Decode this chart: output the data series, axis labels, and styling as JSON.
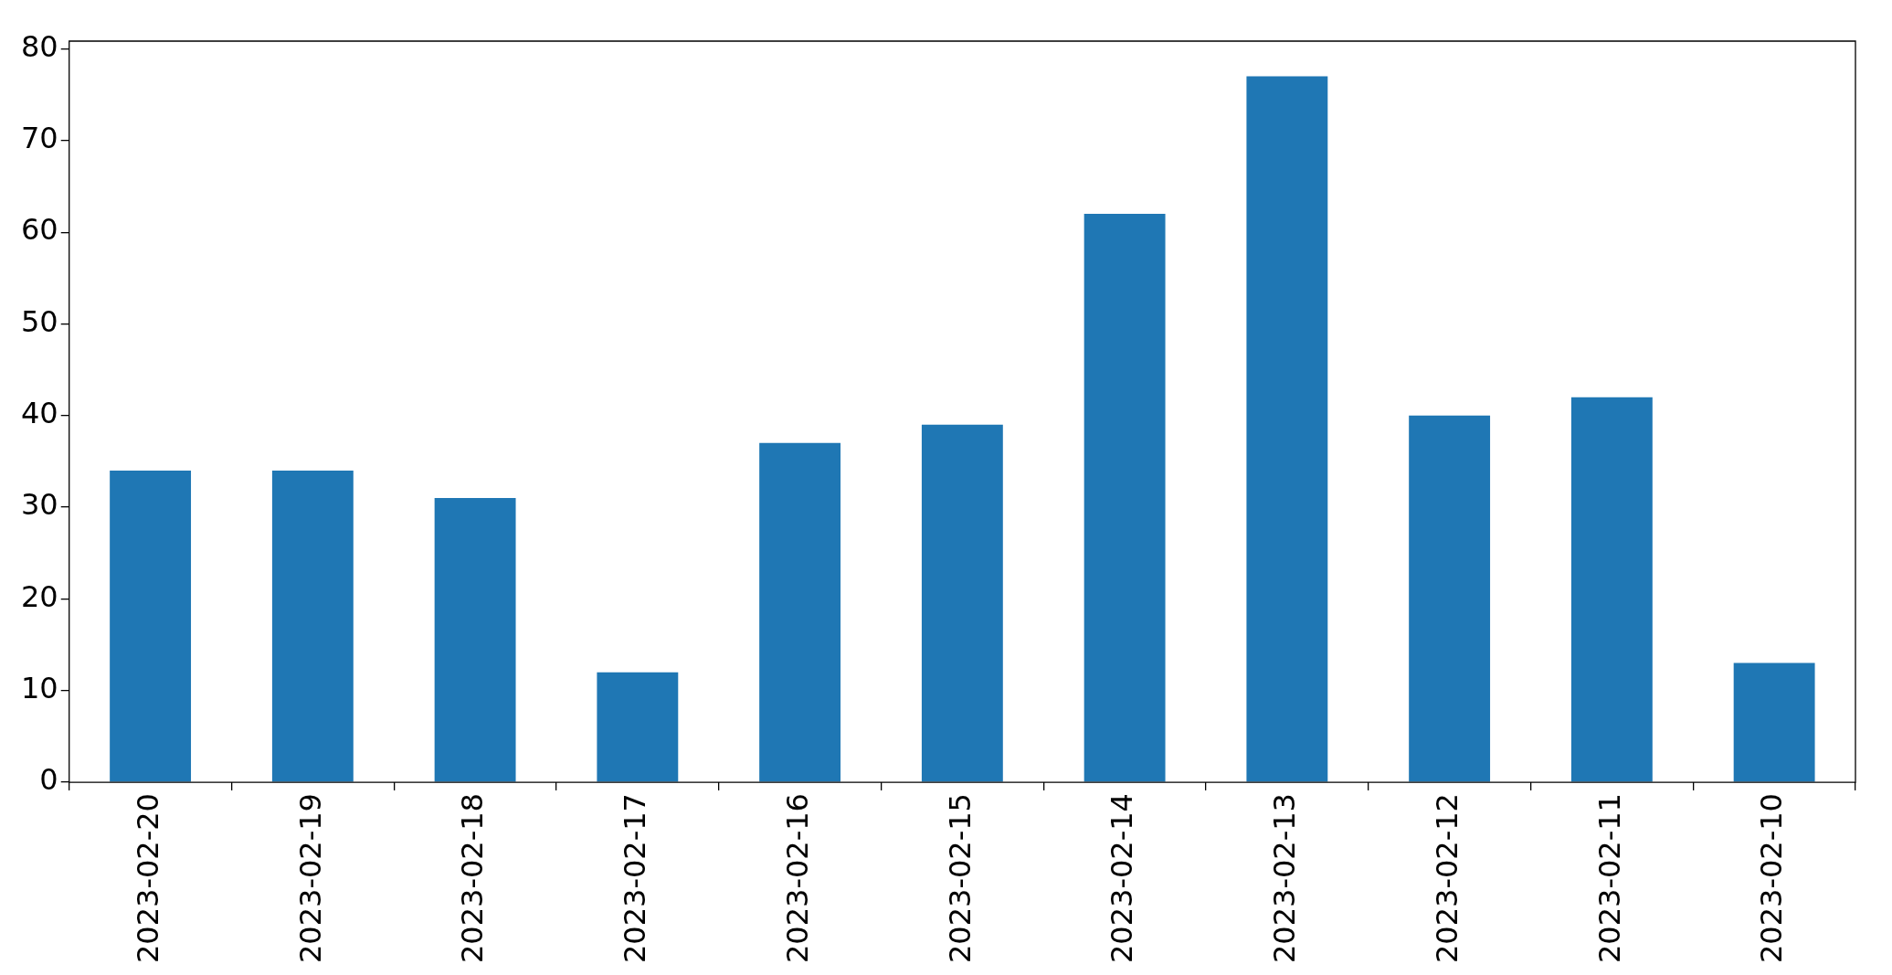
{
  "chart_data": {
    "type": "bar",
    "categories": [
      "2023-02-20",
      "2023-02-19",
      "2023-02-18",
      "2023-02-17",
      "2023-02-16",
      "2023-02-15",
      "2023-02-14",
      "2023-02-13",
      "2023-02-12",
      "2023-02-11",
      "2023-02-10"
    ],
    "values": [
      34,
      34,
      31,
      12,
      37,
      39,
      62,
      77,
      40,
      42,
      13
    ],
    "color": "#1f77b4",
    "ylim": [
      0,
      80.85
    ],
    "yticks": [
      0,
      10,
      20,
      30,
      40,
      50,
      60,
      70,
      80
    ]
  }
}
